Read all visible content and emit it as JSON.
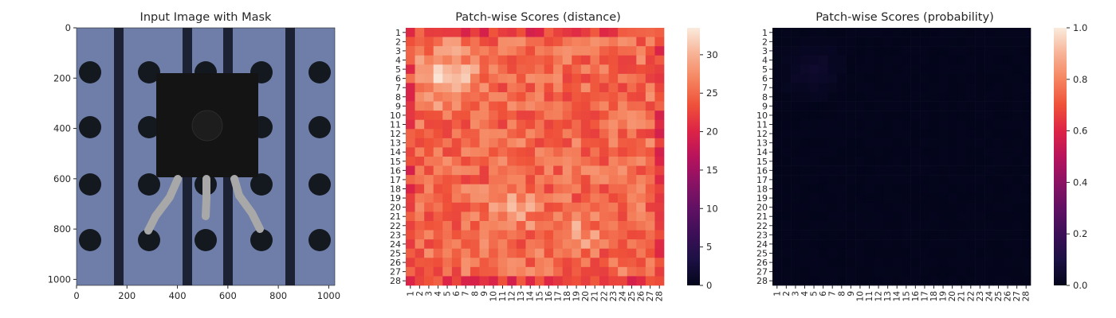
{
  "chart_data": [
    {
      "type": "image",
      "title": "Input Image with Mask",
      "xlim": [
        0,
        1024
      ],
      "ylim": [
        1024,
        0
      ],
      "xticks": [
        "0",
        "200",
        "400",
        "600",
        "800",
        "1000"
      ],
      "yticks": [
        "0",
        "200",
        "400",
        "600",
        "800",
        "1000"
      ],
      "grid": false
    },
    {
      "type": "heatmap",
      "title": "Patch-wise Scores (distance)",
      "rows": 28,
      "cols": 28,
      "row_labels": [
        "1",
        "2",
        "3",
        "4",
        "5",
        "6",
        "7",
        "8",
        "9",
        "10",
        "11",
        "12",
        "13",
        "14",
        "15",
        "16",
        "17",
        "18",
        "19",
        "20",
        "21",
        "22",
        "23",
        "24",
        "25",
        "26",
        "27",
        "28"
      ],
      "col_labels": [
        "1",
        "2",
        "3",
        "4",
        "5",
        "6",
        "7",
        "8",
        "9",
        "10",
        "11",
        "12",
        "13",
        "14",
        "15",
        "16",
        "17",
        "18",
        "19",
        "20",
        "21",
        "22",
        "23",
        "24",
        "25",
        "26",
        "27",
        "28"
      ],
      "colorbar": {
        "min": 0,
        "max": 33.5,
        "ticks": [
          "0",
          "5",
          "10",
          "15",
          "20",
          "25",
          "30"
        ]
      },
      "colormap": "rocket",
      "value_range": [
        18,
        33
      ]
    },
    {
      "type": "heatmap",
      "title": "Patch-wise Scores (probability)",
      "rows": 28,
      "cols": 28,
      "row_labels": [
        "1",
        "2",
        "3",
        "4",
        "5",
        "6",
        "7",
        "8",
        "9",
        "10",
        "11",
        "12",
        "13",
        "14",
        "15",
        "16",
        "17",
        "18",
        "19",
        "20",
        "21",
        "22",
        "23",
        "24",
        "25",
        "26",
        "27",
        "28"
      ],
      "col_labels": [
        "1",
        "2",
        "3",
        "4",
        "5",
        "6",
        "7",
        "8",
        "9",
        "10",
        "11",
        "12",
        "13",
        "14",
        "15",
        "16",
        "17",
        "18",
        "19",
        "20",
        "21",
        "22",
        "23",
        "24",
        "25",
        "26",
        "27",
        "28"
      ],
      "colorbar": {
        "min": 0,
        "max": 1,
        "ticks": [
          "0.0",
          "0.2",
          "0.4",
          "0.6",
          "0.8",
          "1.0"
        ]
      },
      "colormap": "rocket",
      "value_range": [
        0,
        0.05
      ]
    }
  ]
}
